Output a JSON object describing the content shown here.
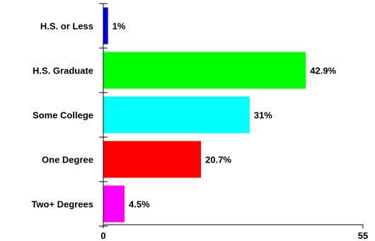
{
  "chart_data": {
    "type": "bar",
    "orientation": "horizontal",
    "categories": [
      "H.S. or Less",
      "H.S. Graduate",
      "Some College",
      "One Degree",
      "Two+ Degrees"
    ],
    "values": [
      1,
      42.9,
      31,
      20.7,
      4.5
    ],
    "value_labels": [
      "1%",
      "42.9%",
      "31%",
      "20.7%",
      "4.5%"
    ],
    "colors": [
      "#0000dd",
      "#00ff00",
      "#00ffff",
      "#ff0000",
      "#ff00ff"
    ],
    "xlim": [
      0,
      55
    ],
    "x_ticks": [
      "0",
      "55"
    ],
    "title": "",
    "xlabel": "",
    "ylabel": "",
    "grid": false,
    "legend": "none"
  }
}
